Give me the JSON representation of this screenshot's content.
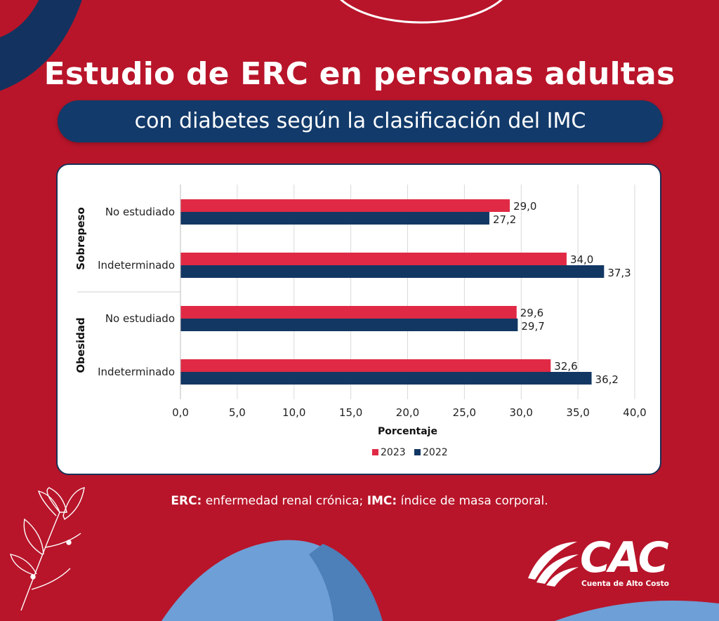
{
  "title": "Estudio de ERC en personas adultas",
  "subtitle": "con diabetes según la clasificación del IMC",
  "footnote": {
    "erc_abbr": "ERC:",
    "erc_def": " enfermedad renal crónica; ",
    "imc_abbr": "IMC:",
    "imc_def": " índice de masa corporal."
  },
  "logo": {
    "letters": "CAC",
    "tagline": "Cuenta de Alto Costo"
  },
  "colors": {
    "background": "#b8152a",
    "series_2023": "#e02a45",
    "series_2022": "#123763",
    "pill": "#123a6a",
    "ribbon": "#6e9fd6"
  },
  "chart_data": {
    "type": "bar",
    "orientation": "horizontal",
    "groups": [
      {
        "name": "Sobrepeso",
        "categories": [
          "No estudiado",
          "Indeterminado"
        ],
        "values_2023": [
          29.0,
          34.0
        ],
        "values_2022": [
          27.2,
          37.3
        ],
        "labels_2023": [
          "29,0",
          "34,0"
        ],
        "labels_2022": [
          "27,2",
          "37,3"
        ]
      },
      {
        "name": "Obesidad",
        "categories": [
          "No estudiado",
          "Indeterminado"
        ],
        "values_2023": [
          29.6,
          32.6
        ],
        "values_2022": [
          29.7,
          36.2
        ],
        "labels_2023": [
          "29,6",
          "32,6"
        ],
        "labels_2022": [
          "29,7",
          "36,2"
        ]
      }
    ],
    "series": [
      {
        "name": "2023"
      },
      {
        "name": "2022"
      }
    ],
    "xlabel": "Porcentaje",
    "xlim": [
      0,
      40
    ],
    "xticks": [
      0,
      5,
      10,
      15,
      20,
      25,
      30,
      35,
      40
    ],
    "xtick_labels": [
      "0,0",
      "5,0",
      "10,0",
      "15,0",
      "20,0",
      "25,0",
      "30,0",
      "35,0",
      "40,0"
    ],
    "grid": true,
    "legend_position": "bottom-center"
  }
}
